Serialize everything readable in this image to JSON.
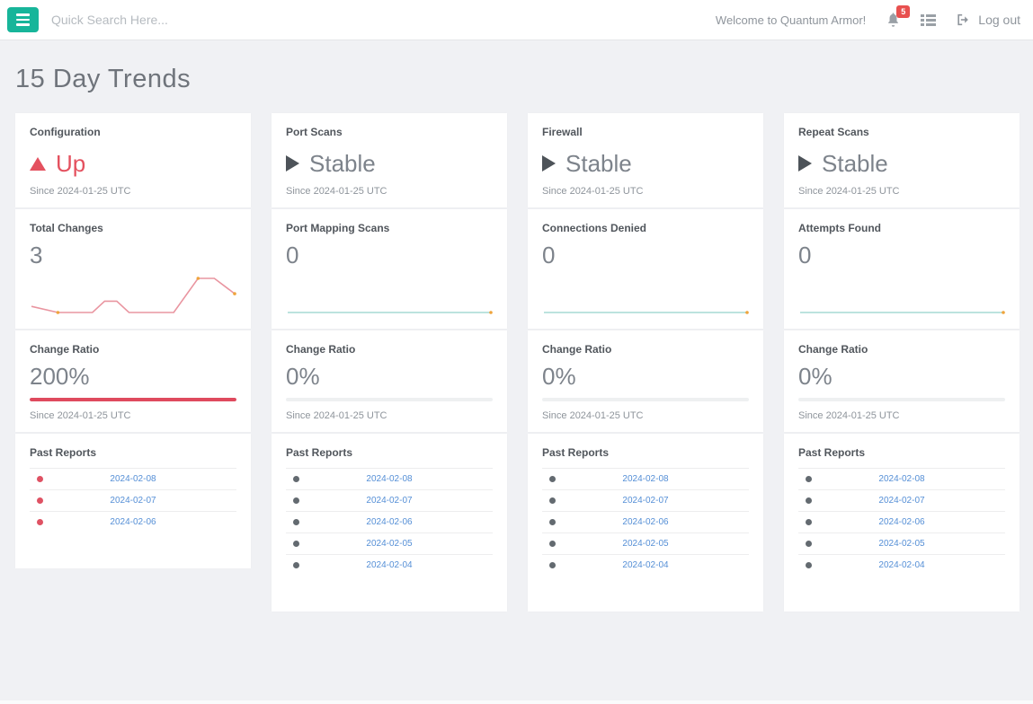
{
  "navbar": {
    "search_placeholder": "Quick Search Here...",
    "welcome_text": "Welcome to Quantum Armor!",
    "notification_count": "5",
    "logout_label": "Log out"
  },
  "page_title": "15 Day Trends",
  "colors": {
    "accent_teal": "#17b59a",
    "alert_red": "#e4515f",
    "badge_red": "#e8504f",
    "link_blue": "#558fd6",
    "spark_red": "#e995a0",
    "spark_teal": "#a5dad4",
    "marker_orange": "#efa43c",
    "neutral_dark": "#4d5359",
    "text_gray": "#7d838b"
  },
  "cards": [
    {
      "title": "Configuration",
      "status_label": "Up",
      "status_icon": "triangle-up",
      "status_style": "alert",
      "since": "Since 2024-01-25 UTC",
      "metric_label": "Total Changes",
      "metric_value": "3",
      "ratio_label": "Change Ratio",
      "ratio_value": "200%",
      "ratio_since": "Since 2024-01-25 UTC",
      "progress_fill_percent": 100,
      "progress_style": "alert",
      "reports_label": "Past Reports",
      "report_dot_style": "alert",
      "report_dates": [
        "2024-02-08",
        "2024-02-07",
        "2024-02-06"
      ]
    },
    {
      "title": "Port Scans",
      "status_label": "Stable",
      "status_icon": "triangle-right",
      "status_style": "neutral",
      "since": "Since 2024-01-25 UTC",
      "metric_label": "Port Mapping Scans",
      "metric_value": "0",
      "ratio_label": "Change Ratio",
      "ratio_value": "0%",
      "ratio_since": "Since 2024-01-25 UTC",
      "progress_fill_percent": 0,
      "progress_style": "neutral",
      "reports_label": "Past Reports",
      "report_dot_style": "neutral",
      "report_dates": [
        "2024-02-08",
        "2024-02-07",
        "2024-02-06",
        "2024-02-05",
        "2024-02-04"
      ]
    },
    {
      "title": "Firewall",
      "status_label": "Stable",
      "status_icon": "triangle-right",
      "status_style": "neutral",
      "since": "Since 2024-01-25 UTC",
      "metric_label": "Connections Denied",
      "metric_value": "0",
      "ratio_label": "Change Ratio",
      "ratio_value": "0%",
      "ratio_since": "Since 2024-01-25 UTC",
      "progress_fill_percent": 0,
      "progress_style": "neutral",
      "reports_label": "Past Reports",
      "report_dot_style": "neutral",
      "report_dates": [
        "2024-02-08",
        "2024-02-07",
        "2024-02-06",
        "2024-02-05",
        "2024-02-04"
      ]
    },
    {
      "title": "Repeat Scans",
      "status_label": "Stable",
      "status_icon": "triangle-right",
      "status_style": "neutral",
      "since": "Since 2024-01-25 UTC",
      "metric_label": "Attempts Found",
      "metric_value": "0",
      "ratio_label": "Change Ratio",
      "ratio_value": "0%",
      "ratio_since": "Since 2024-01-25 UTC",
      "progress_fill_percent": 0,
      "progress_style": "neutral",
      "reports_label": "Past Reports",
      "report_dot_style": "neutral",
      "report_dates": [
        "2024-02-08",
        "2024-02-07",
        "2024-02-06",
        "2024-02-05",
        "2024-02-04"
      ]
    }
  ],
  "chart_data": [
    {
      "type": "line",
      "title": "Configuration - Total Changes 15 day sparkline",
      "points": [
        [
          0,
          0.18
        ],
        [
          0.13,
          0
        ],
        [
          0.3,
          0
        ],
        [
          0.36,
          0.33
        ],
        [
          0.42,
          0.33
        ],
        [
          0.48,
          0
        ],
        [
          0.7,
          0
        ],
        [
          0.82,
          1
        ],
        [
          0.9,
          1
        ],
        [
          1,
          0.55
        ]
      ],
      "markers": [
        [
          0.13,
          0
        ],
        [
          0.82,
          1
        ],
        [
          1,
          0.55
        ]
      ],
      "color": "spark_red"
    },
    {
      "type": "line",
      "title": "Port Scans - Port Mapping Scans 15 day sparkline",
      "points": [
        [
          0,
          0
        ],
        [
          1,
          0
        ]
      ],
      "markers": [
        [
          1,
          0
        ]
      ],
      "color": "spark_teal"
    },
    {
      "type": "line",
      "title": "Firewall - Connections Denied 15 day sparkline",
      "points": [
        [
          0,
          0
        ],
        [
          1,
          0
        ]
      ],
      "markers": [
        [
          1,
          0
        ]
      ],
      "color": "spark_teal"
    },
    {
      "type": "line",
      "title": "Repeat Scans - Attempts Found 15 day sparkline",
      "points": [
        [
          0,
          0
        ],
        [
          1,
          0
        ]
      ],
      "markers": [
        [
          1,
          0
        ]
      ],
      "color": "spark_teal"
    }
  ]
}
